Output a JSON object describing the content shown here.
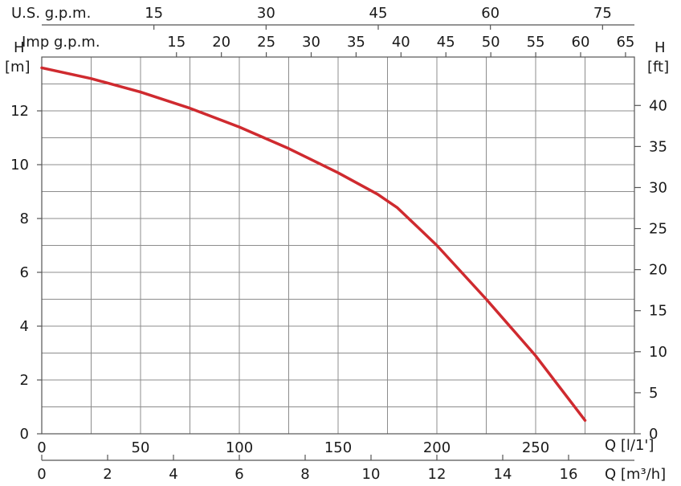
{
  "chart_data": {
    "type": "line",
    "series": [
      {
        "color": "#cf2a2f",
        "x": [
          0,
          25,
          50,
          75,
          100,
          125,
          150,
          160,
          170,
          180,
          190,
          200,
          225,
          250,
          275
        ],
        "y": [
          13.6,
          13.2,
          12.7,
          12.1,
          11.4,
          10.6,
          9.7,
          9.3,
          8.9,
          8.4,
          7.7,
          7.0,
          5.0,
          2.9,
          0.5
        ]
      }
    ],
    "axes": {
      "h_m": {
        "label_top": "H",
        "label_unit": "[m]",
        "range": [
          0,
          14
        ],
        "ticks": [
          "0",
          "2",
          "4",
          "6",
          "8",
          "10",
          "12"
        ]
      },
      "h_ft": {
        "label_top": "H",
        "label_unit": "[ft]",
        "range": [
          0,
          45.9
        ],
        "ticks": [
          "0",
          "5",
          "10",
          "15",
          "20",
          "25",
          "30",
          "35",
          "40"
        ]
      },
      "q_lpm": {
        "label": "Q [l/1']",
        "range": [
          0,
          300
        ],
        "ticks": [
          "0",
          "50",
          "100",
          "150",
          "200",
          "250"
        ]
      },
      "q_m3h": {
        "label": "Q [m³/h]",
        "range": [
          0,
          18
        ],
        "ticks": [
          "0",
          "2",
          "4",
          "6",
          "8",
          "10",
          "12",
          "14",
          "16"
        ]
      },
      "us_gpm": {
        "label": "U.S.  g.p.m.",
        "ticks": [
          "15",
          "30",
          "45",
          "60",
          "75"
        ]
      },
      "imp_gpm": {
        "label": "Imp  g.p.m.",
        "ticks": [
          "15",
          "20",
          "25",
          "30",
          "35",
          "40",
          "45",
          "50",
          "55",
          "60",
          "65"
        ]
      }
    },
    "grid": true
  }
}
